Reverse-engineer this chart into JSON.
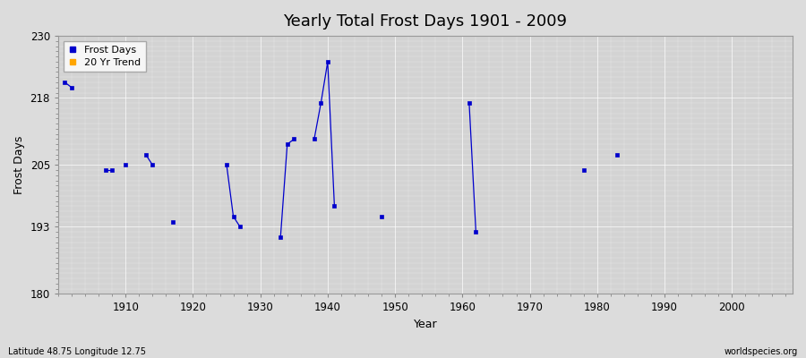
{
  "title": "Yearly Total Frost Days 1901 - 2009",
  "xlabel": "Year",
  "ylabel": "Frost Days",
  "xlim": [
    1900,
    2009
  ],
  "ylim": [
    180,
    230
  ],
  "yticks": [
    180,
    193,
    205,
    218,
    230
  ],
  "xticks": [
    1910,
    1920,
    1930,
    1940,
    1950,
    1960,
    1970,
    1980,
    1990,
    2000
  ],
  "background_color": "#dcdcdc",
  "plot_bg_color": "#d3d3d3",
  "grid_color": "#ffffff",
  "frost_days_color": "#0000cc",
  "trend_color": "#ffa500",
  "subtitle": "Latitude 48.75 Longitude 12.75",
  "watermark": "worldspecies.org",
  "segments": [
    {
      "years": [
        1901,
        1902
      ],
      "values": [
        221,
        220
      ]
    },
    {
      "years": [
        1907,
        1908
      ],
      "values": [
        204,
        204
      ]
    },
    {
      "years": [
        1910
      ],
      "values": [
        205
      ]
    },
    {
      "years": [
        1913,
        1914
      ],
      "values": [
        207,
        205
      ]
    },
    {
      "years": [
        1917
      ],
      "values": [
        194
      ]
    },
    {
      "years": [
        1925,
        1926,
        1927
      ],
      "values": [
        205,
        195,
        193
      ]
    },
    {
      "years": [
        1933,
        1934,
        1935
      ],
      "values": [
        191,
        209,
        210
      ]
    },
    {
      "years": [
        1938,
        1939,
        1940,
        1941
      ],
      "values": [
        210,
        217,
        225,
        197
      ]
    },
    {
      "years": [
        1948
      ],
      "values": [
        195
      ]
    },
    {
      "years": [
        1961,
        1962
      ],
      "values": [
        217,
        192
      ]
    },
    {
      "years": [
        1978
      ],
      "values": [
        204
      ]
    },
    {
      "years": [
        1983
      ],
      "values": [
        207
      ]
    }
  ]
}
